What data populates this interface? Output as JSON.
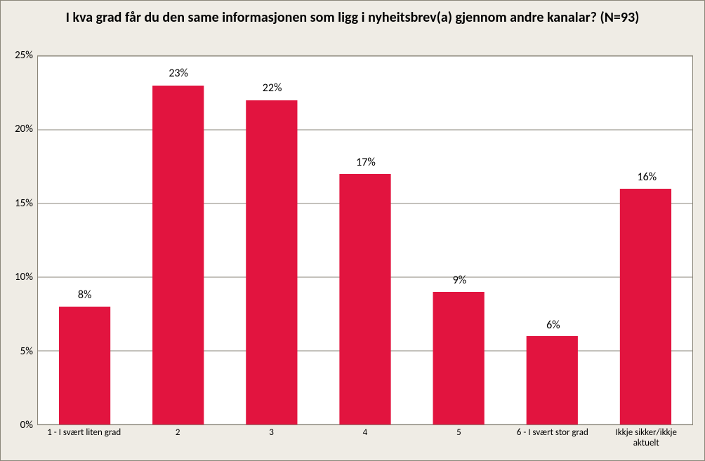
{
  "chart": {
    "type": "bar",
    "title": "I kva grad får du den same informasjonen som ligg i nyheitsbrev(a) gjennom andre kanalar?  (N=93)",
    "title_fontsize": 20,
    "categories": [
      "1 - I svært liten grad",
      "2",
      "3",
      "4",
      "5",
      "6 - I svært stor grad",
      "Ikkje sikker/ikkje aktuelt"
    ],
    "values": [
      8,
      23,
      22,
      17,
      9,
      6,
      16
    ],
    "data_label_suffix": "%",
    "bar_color": "#e2143f",
    "plot_background": "#ffffff",
    "page_background": "#efece5",
    "border_color": "#8a8679",
    "grid_color": "#8a8679",
    "ylim": [
      0,
      25
    ],
    "ytick_step": 5,
    "ytick_suffix": "%",
    "bar_width": 0.55,
    "label_fontsize": 16,
    "xtick_fontsize": 13,
    "ytick_fontsize": 15,
    "font_family": "Calibri, Arial, sans-serif"
  }
}
